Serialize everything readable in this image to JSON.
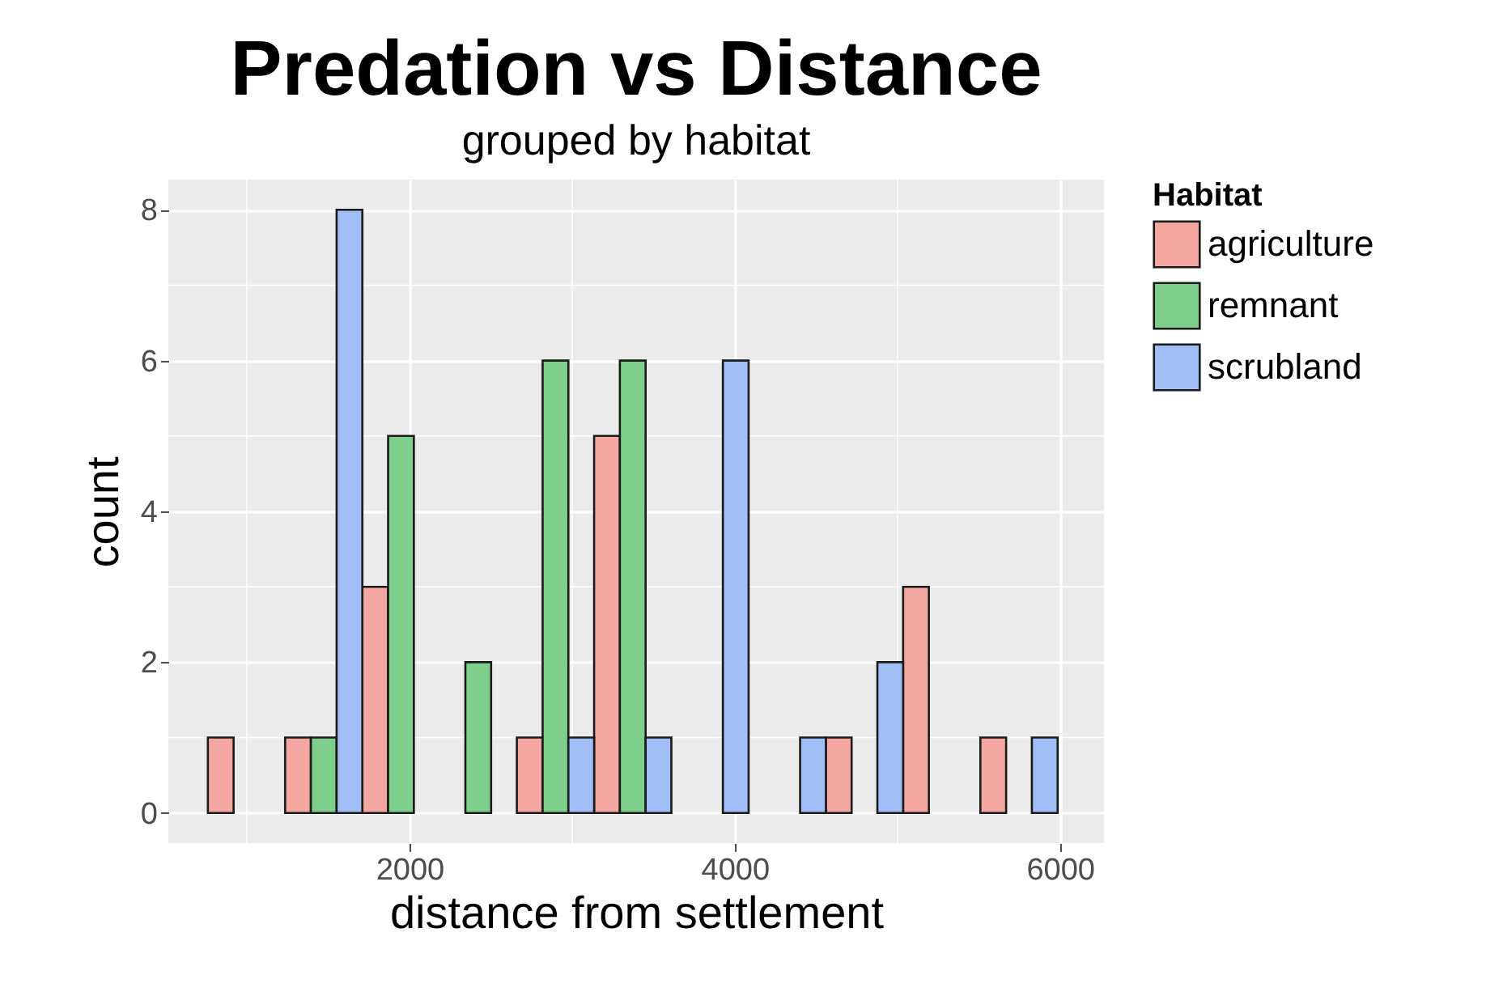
{
  "chart_data": {
    "type": "histogram",
    "title": "Predation vs Distance",
    "subtitle": "grouped by habitat",
    "xlabel": "distance from settlement",
    "ylabel": "count",
    "legend_title": "Habitat",
    "bins": [
      760,
      1235,
      1710,
      2185,
      2660,
      3135,
      3610,
      4085,
      4560,
      5035,
      5510,
      5985
    ],
    "series": [
      {
        "name": "agriculture",
        "color": "#f4a7a1",
        "values": [
          1,
          1,
          3,
          0,
          1,
          5,
          0,
          0,
          1,
          3,
          1
        ]
      },
      {
        "name": "remnant",
        "color": "#7fcf8c",
        "values": [
          0,
          1,
          5,
          2,
          6,
          6,
          0,
          0,
          0,
          0,
          0
        ]
      },
      {
        "name": "scrubland",
        "color": "#a0bdf5",
        "values": [
          0,
          8,
          0,
          0,
          1,
          1,
          6,
          1,
          2,
          0,
          1
        ]
      }
    ],
    "xlim": [
      517,
      6270
    ],
    "xticks": [
      2000,
      4000,
      6000
    ],
    "ylim": [
      -0.4,
      8.4
    ],
    "yticks": [
      0,
      2,
      4,
      6,
      8
    ],
    "grid": true,
    "legend": "right"
  }
}
